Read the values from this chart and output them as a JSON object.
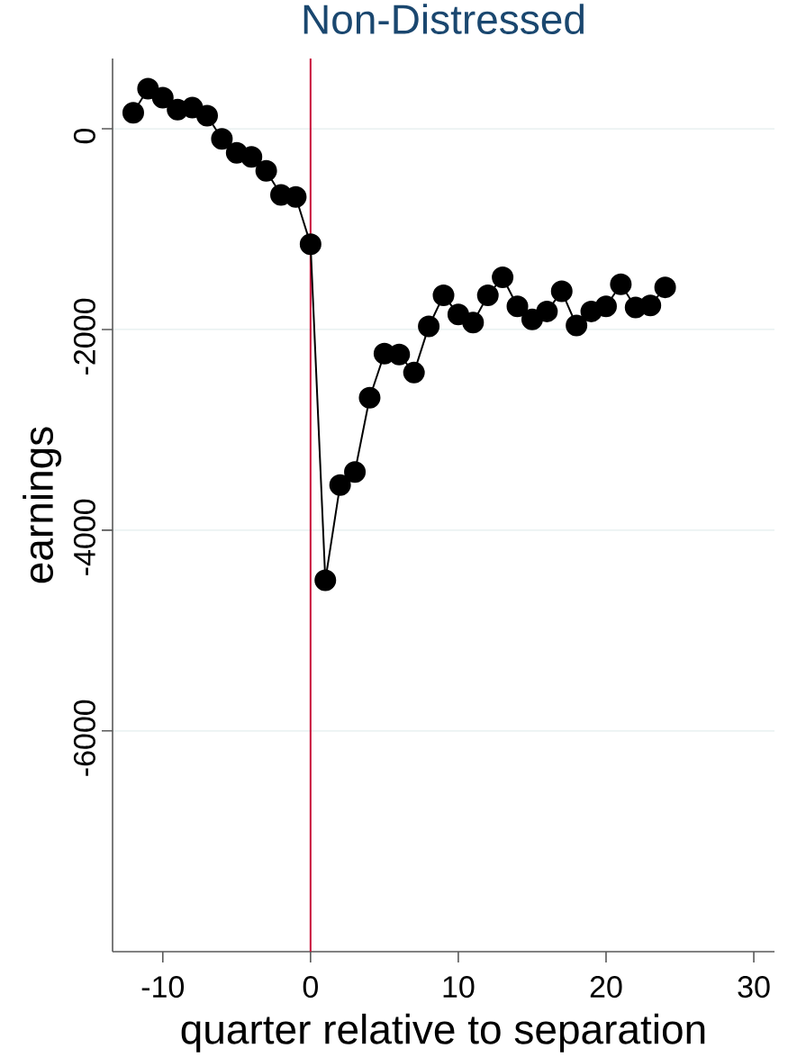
{
  "chart_data": {
    "type": "line",
    "title": "Non-Distressed",
    "xlabel": "quarter relative to separation",
    "ylabel": "earnings",
    "x": [
      -12,
      -11,
      -10,
      -9,
      -8,
      -7,
      -6,
      -5,
      -4,
      -3,
      -2,
      -1,
      0,
      1,
      2,
      3,
      4,
      5,
      6,
      7,
      8,
      9,
      10,
      11,
      12,
      13,
      14,
      15,
      16,
      17,
      18,
      19,
      20,
      21,
      22,
      23,
      24
    ],
    "series": [
      {
        "color": "#000000",
        "values": [
          160,
          400,
          310,
          190,
          210,
          130,
          -100,
          -240,
          -280,
          -420,
          -660,
          -680,
          -1150,
          -4500,
          -3550,
          -3420,
          -2680,
          -2240,
          -2250,
          -2430,
          -1970,
          -1660,
          -1850,
          -1930,
          -1660,
          -1480,
          -1770,
          -1900,
          -1820,
          -1620,
          -1960,
          -1820,
          -1770,
          -1550,
          -1780,
          -1760,
          -1580
        ]
      }
    ],
    "xlim": [
      -13.4,
      31.4
    ],
    "ylim": [
      -8200,
      700
    ],
    "xticks": [
      -10,
      0,
      10,
      20,
      30
    ],
    "yticks": [
      0,
      -2000,
      -4000,
      -6000
    ],
    "ref_lines": [
      {
        "axis": "x",
        "value": 0,
        "color": "#c8103a"
      }
    ],
    "grid": "y",
    "marker": "circle",
    "line_style": "solid"
  }
}
